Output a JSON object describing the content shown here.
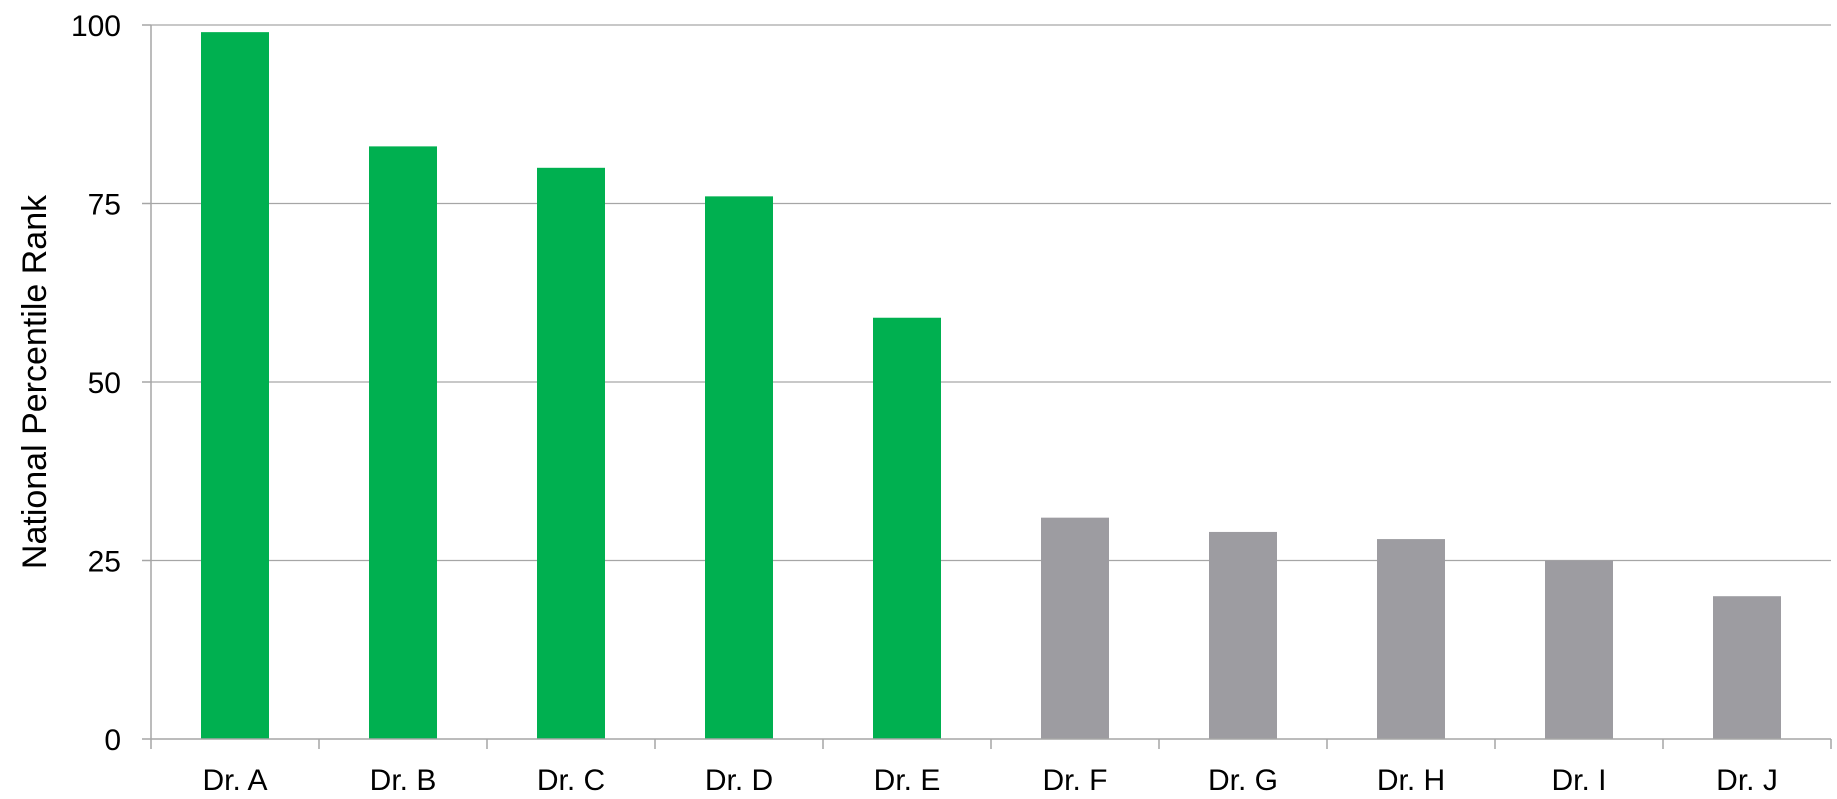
{
  "chart_data": {
    "type": "bar",
    "title": "",
    "xlabel": "",
    "ylabel": "National Percentile Rank",
    "ylim": [
      0,
      100
    ],
    "yticks": [
      0,
      25,
      50,
      75,
      100
    ],
    "grid": true,
    "categories": [
      "Dr. A",
      "Dr. B",
      "Dr. C",
      "Dr. D",
      "Dr. E",
      "Dr. F",
      "Dr. G",
      "Dr. H",
      "Dr. I",
      "Dr. J"
    ],
    "values": [
      99,
      83,
      80,
      76,
      59,
      31,
      29,
      28,
      25,
      20
    ],
    "bar_colors": [
      "#00b050",
      "#00b050",
      "#00b050",
      "#00b050",
      "#00b050",
      "#9d9ca1",
      "#9d9ca1",
      "#9d9ca1",
      "#9d9ca1",
      "#9d9ca1"
    ]
  }
}
